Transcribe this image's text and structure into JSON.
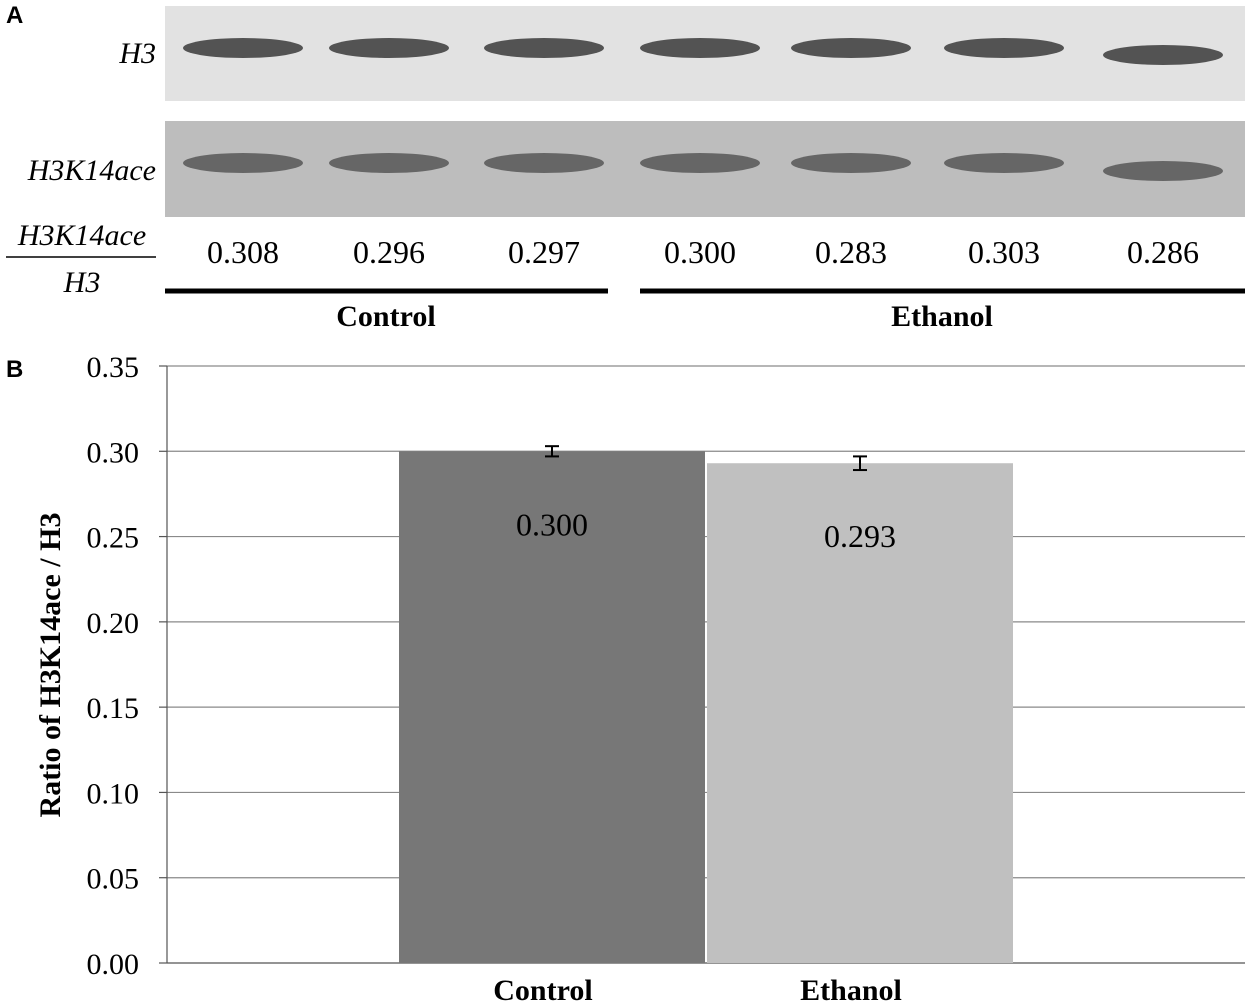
{
  "panel_a": {
    "letter": "A",
    "row_labels": {
      "h3": "H3",
      "h3k14": "H3K14ace"
    },
    "ratio_label": {
      "numerator": "H3K14ace",
      "denominator": "H3"
    },
    "lanes": [
      {
        "group": "Control",
        "ratio": "0.308"
      },
      {
        "group": "Control",
        "ratio": "0.296"
      },
      {
        "group": "Control",
        "ratio": "0.297"
      },
      {
        "group": "Ethanol",
        "ratio": "0.300"
      },
      {
        "group": "Ethanol",
        "ratio": "0.283"
      },
      {
        "group": "Ethanol",
        "ratio": "0.303"
      },
      {
        "group": "Ethanol",
        "ratio": "0.286"
      }
    ],
    "groups": [
      "Control",
      "Ethanol"
    ]
  },
  "panel_b": {
    "letter": "B"
  },
  "chart_data": {
    "type": "bar",
    "categories": [
      "Control",
      "Ethanol"
    ],
    "values": [
      0.3,
      0.293
    ],
    "value_labels": [
      "0.300",
      "0.293"
    ],
    "error": [
      0.003,
      0.004
    ],
    "bar_colors": [
      "#777777",
      "#c0c0c0"
    ],
    "xlabel": "",
    "ylabel": "Ratio of H3K14ace / H3",
    "ylim": [
      0,
      0.35
    ],
    "yticks": [
      "0.00",
      "0.05",
      "0.10",
      "0.15",
      "0.20",
      "0.25",
      "0.30",
      "0.35"
    ],
    "grid": true,
    "legend": "none"
  }
}
